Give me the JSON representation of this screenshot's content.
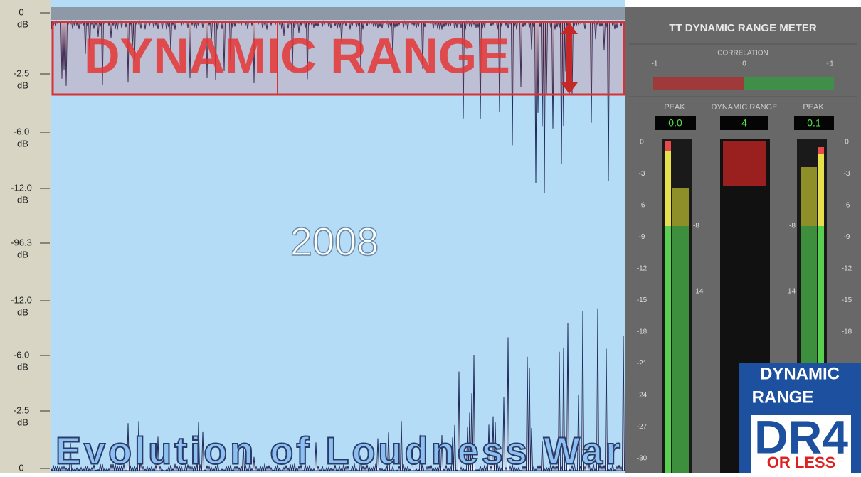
{
  "axis": {
    "labels": [
      [
        "0",
        "dB"
      ],
      [
        "-2.5",
        "dB"
      ],
      [
        "-6.0",
        "dB"
      ],
      [
        "-12.0",
        "dB"
      ],
      [
        "-96.3",
        "dB"
      ],
      [
        "-12.0",
        "dB"
      ],
      [
        "-6.0",
        "dB"
      ],
      [
        "-2.5",
        "dB"
      ],
      [
        "0"
      ]
    ]
  },
  "overlay": {
    "heading": "DYNAMIC RANGE",
    "year": "2008",
    "caption": "Evolution of Loudness War"
  },
  "meter": {
    "title": "TT DYNAMIC RANGE METER",
    "correlation": {
      "label": "CORRELATION",
      "ticks": [
        "-1",
        "0",
        "+1"
      ]
    },
    "columns": [
      "PEAK",
      "DYNAMIC RANGE",
      "PEAK"
    ],
    "readouts": [
      "0.0",
      "4",
      "0.1"
    ],
    "left_scale": [
      "0",
      "-3",
      "-6",
      "-9",
      "-12",
      "-15",
      "-18",
      "-21",
      "-24",
      "-27",
      "-30"
    ],
    "right_scale": [
      "0",
      "-3",
      "-6",
      "-9",
      "-12",
      "-15",
      "-18"
    ],
    "markers": [
      "-8",
      "-14",
      "-8",
      "-14"
    ]
  },
  "logo": {
    "line1": "DYNAMIC",
    "line2": "RANGE",
    "badge": "DR4",
    "footer": "OR LESS"
  }
}
